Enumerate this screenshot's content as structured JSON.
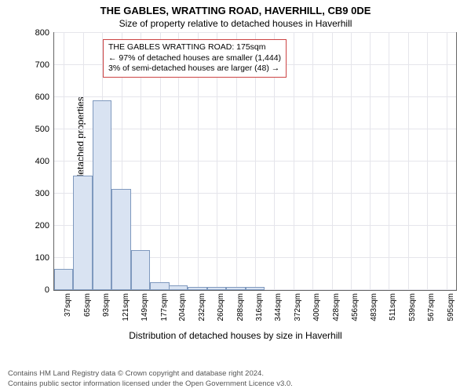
{
  "title": "THE GABLES, WRATTING ROAD, HAVERHILL, CB9 0DE",
  "subtitle": "Size of property relative to detached houses in Haverhill",
  "ylabel": "Number of detached properties",
  "xlabel": "Distribution of detached houses by size in Haverhill",
  "annotation": {
    "line1": "THE GABLES WRATTING ROAD: 175sqm",
    "line2": "← 97% of detached houses are smaller (1,444)",
    "line3": "3% of semi-detached houses are larger (48) →"
  },
  "chart": {
    "type": "histogram",
    "ylim": [
      0,
      800
    ],
    "yticks": [
      0,
      100,
      200,
      300,
      400,
      500,
      600,
      700,
      800
    ],
    "xticks_labels": [
      "37sqm",
      "65sqm",
      "93sqm",
      "121sqm",
      "149sqm",
      "177sqm",
      "204sqm",
      "232sqm",
      "260sqm",
      "288sqm",
      "316sqm",
      "344sqm",
      "372sqm",
      "400sqm",
      "428sqm",
      "456sqm",
      "483sqm",
      "511sqm",
      "539sqm",
      "567sqm",
      "595sqm"
    ],
    "xticks_pos": [
      37,
      65,
      93,
      121,
      149,
      177,
      204,
      232,
      260,
      288,
      316,
      344,
      372,
      400,
      428,
      456,
      483,
      511,
      539,
      567,
      595
    ],
    "xlim": [
      23,
      609
    ],
    "bar_values": [
      65,
      355,
      590,
      315,
      125,
      25,
      15,
      10,
      10,
      10,
      10,
      0,
      0,
      0,
      0,
      0,
      0,
      0,
      0,
      0,
      0
    ],
    "bar_starts": [
      23,
      51,
      79,
      107,
      135,
      163,
      190,
      218,
      246,
      274,
      302,
      330,
      358,
      386,
      414,
      442,
      469,
      497,
      525,
      553,
      581
    ],
    "bar_width_sqm": 28,
    "bar_fill": "#d9e3f2",
    "bar_edge": "#7f99be",
    "grid_color": "#e5e5eb",
    "frame_color": "#666666",
    "background_color": "#ffffff",
    "annotation_border": "#cc4444",
    "title_fontsize": 13,
    "subtitle_fontsize": 12,
    "label_fontsize": 12,
    "tick_fontsize": 11
  },
  "footer": {
    "line1": "Contains HM Land Registry data © Crown copyright and database right 2024.",
    "line2": "Contains public sector information licensed under the Open Government Licence v3.0."
  }
}
